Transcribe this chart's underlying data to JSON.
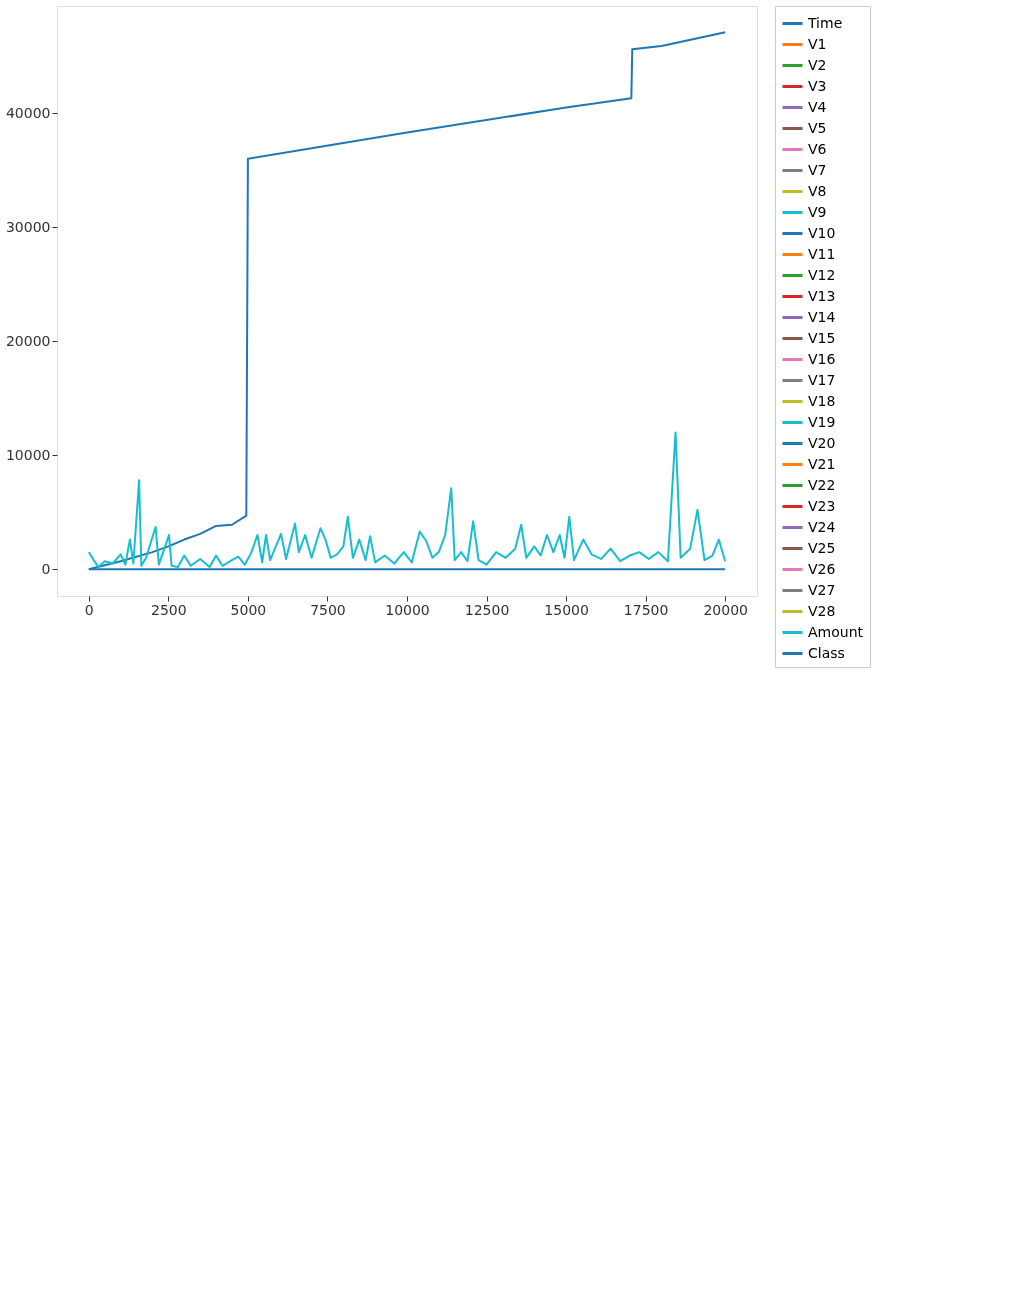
{
  "chart_data": {
    "type": "line",
    "xlim": [
      -1000,
      21000
    ],
    "ylim": [
      -2350,
      49400
    ],
    "xticks": [
      0,
      2500,
      5000,
      7500,
      10000,
      12500,
      15000,
      17500,
      20000
    ],
    "yticks": [
      0,
      10000,
      20000,
      30000,
      40000
    ],
    "grid": false,
    "legend": "right",
    "line_style": "solid",
    "marker": "none",
    "series": [
      {
        "name": "Time",
        "color": "#1f77b4",
        "x": [
          0,
          1000,
          2000,
          2500,
          3000,
          3500,
          4000,
          4500,
          4950,
          5000,
          10000,
          15000,
          17050,
          17080,
          18000,
          20000
        ],
        "values": [
          0,
          700,
          1500,
          2000,
          2600,
          3100,
          3800,
          3900,
          4700,
          36000,
          38300,
          40500,
          41300,
          45600,
          45900,
          47100
        ]
      },
      {
        "name": "V1",
        "color": "#ff7f0e"
      },
      {
        "name": "V2",
        "color": "#2ca02c"
      },
      {
        "name": "V3",
        "color": "#d62728"
      },
      {
        "name": "V4",
        "color": "#9467bd"
      },
      {
        "name": "V5",
        "color": "#8c564b"
      },
      {
        "name": "V6",
        "color": "#e377c2"
      },
      {
        "name": "V7",
        "color": "#7f7f7f"
      },
      {
        "name": "V8",
        "color": "#bcbd22"
      },
      {
        "name": "V9",
        "color": "#17becf"
      },
      {
        "name": "V10",
        "color": "#1f77b4"
      },
      {
        "name": "V11",
        "color": "#ff7f0e"
      },
      {
        "name": "V12",
        "color": "#2ca02c"
      },
      {
        "name": "V13",
        "color": "#d62728"
      },
      {
        "name": "V14",
        "color": "#9467bd"
      },
      {
        "name": "V15",
        "color": "#8c564b"
      },
      {
        "name": "V16",
        "color": "#e377c2"
      },
      {
        "name": "V17",
        "color": "#7f7f7f"
      },
      {
        "name": "V18",
        "color": "#bcbd22"
      },
      {
        "name": "V19",
        "color": "#17becf"
      },
      {
        "name": "V20",
        "color": "#1f77b4"
      },
      {
        "name": "V21",
        "color": "#ff7f0e"
      },
      {
        "name": "V22",
        "color": "#2ca02c"
      },
      {
        "name": "V23",
        "color": "#d62728"
      },
      {
        "name": "V24",
        "color": "#9467bd"
      },
      {
        "name": "V25",
        "color": "#8c564b"
      },
      {
        "name": "V26",
        "color": "#e377c2"
      },
      {
        "name": "V27",
        "color": "#7f7f7f"
      },
      {
        "name": "V28",
        "color": "#bcbd22"
      },
      {
        "name": "Amount",
        "color": "#17becf",
        "x": [
          0,
          150,
          300,
          500,
          750,
          1000,
          1150,
          1290,
          1400,
          1580,
          1650,
          1800,
          2100,
          2200,
          2520,
          2600,
          2800,
          3000,
          3200,
          3500,
          3800,
          4000,
          4200,
          4500,
          4700,
          4900,
          5100,
          5300,
          5450,
          5570,
          5700,
          6040,
          6200,
          6480,
          6600,
          6800,
          7000,
          7280,
          7450,
          7600,
          7800,
          8000,
          8140,
          8300,
          8500,
          8700,
          8840,
          9000,
          9300,
          9600,
          9900,
          10150,
          10400,
          10600,
          10800,
          11000,
          11200,
          11390,
          11500,
          11700,
          11900,
          12080,
          12250,
          12500,
          12800,
          13100,
          13400,
          13590,
          13750,
          14000,
          14200,
          14400,
          14600,
          14800,
          14950,
          15100,
          15250,
          15540,
          15800,
          16100,
          16400,
          16700,
          17000,
          17300,
          17600,
          17900,
          18200,
          18440,
          18600,
          18900,
          19130,
          19350,
          19600,
          19800,
          19999
        ],
        "values": [
          1500,
          800,
          200,
          700,
          500,
          1300,
          400,
          2600,
          500,
          7800,
          300,
          1000,
          3700,
          400,
          3000,
          300,
          200,
          1200,
          300,
          900,
          200,
          1200,
          300,
          800,
          1100,
          400,
          1400,
          3000,
          600,
          3000,
          800,
          3100,
          900,
          4000,
          1500,
          3000,
          1000,
          3600,
          2500,
          1000,
          1300,
          2000,
          4600,
          1000,
          2600,
          800,
          2900,
          600,
          1200,
          500,
          1500,
          600,
          3300,
          2500,
          1000,
          1500,
          3000,
          7100,
          800,
          1500,
          700,
          4200,
          800,
          400,
          1500,
          1000,
          1800,
          3900,
          1000,
          2000,
          1200,
          3000,
          1500,
          3000,
          1000,
          4600,
          800,
          2600,
          1300,
          900,
          1800,
          700,
          1200,
          1500,
          900,
          1500,
          700,
          12000,
          1000,
          1800,
          5200,
          800,
          1200,
          2600,
          700
        ]
      },
      {
        "name": "Class",
        "color": "#1f77b4",
        "x": [
          0,
          20000
        ],
        "values": [
          0,
          0
        ]
      }
    ]
  }
}
